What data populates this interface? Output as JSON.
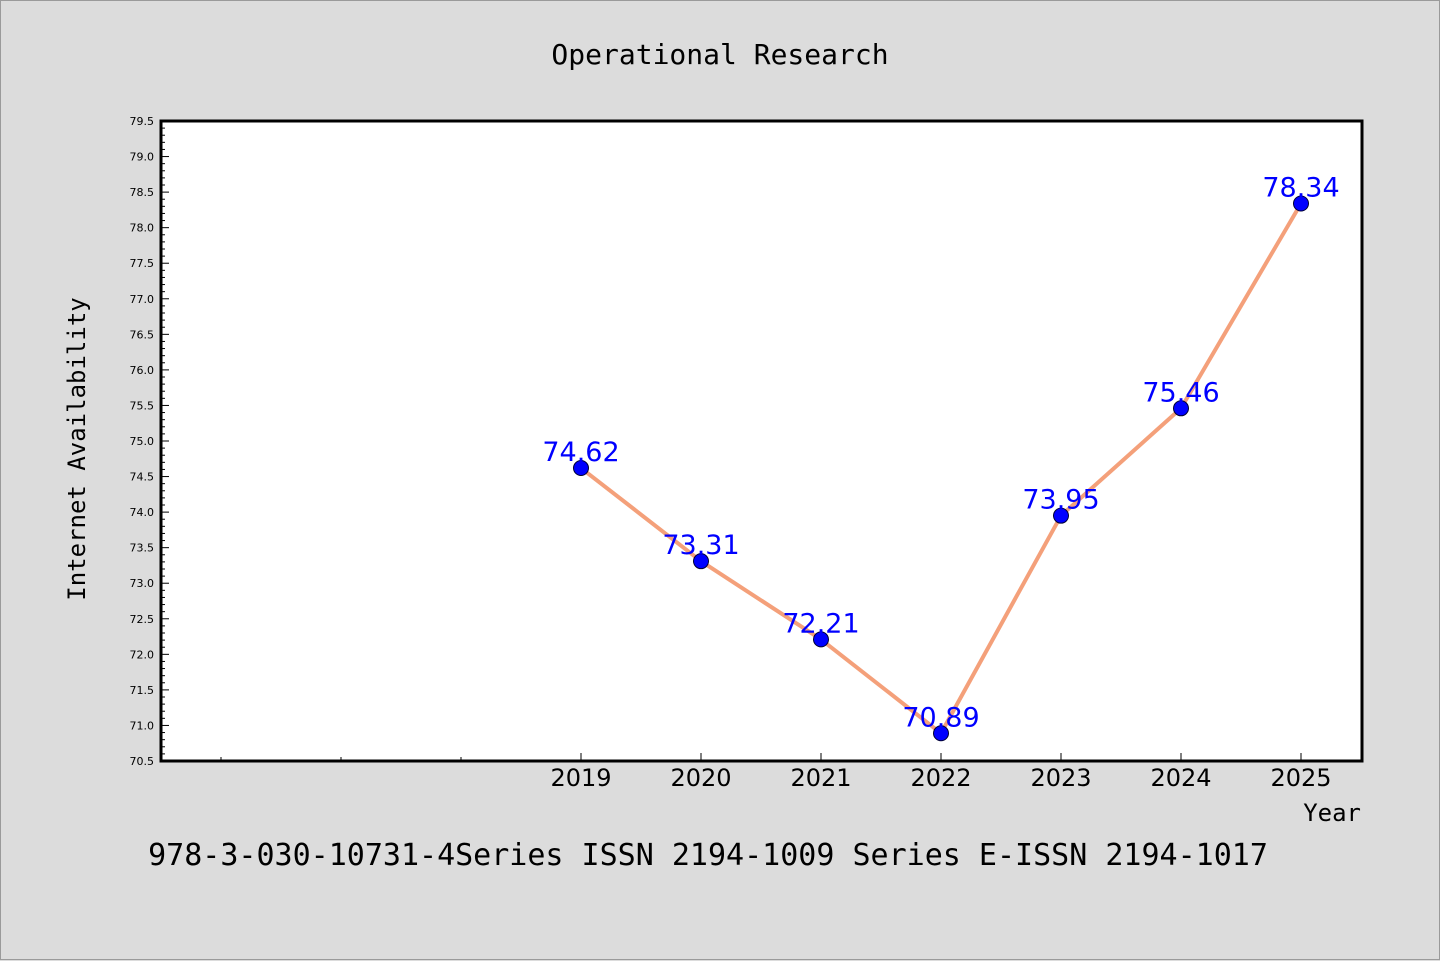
{
  "chart_data": {
    "type": "line",
    "title": "Operational Research",
    "subtitle": "978-3-030-10731-4Series ISSN 2194-1009 Series E-ISSN 2194-1017",
    "xlabel": "Year",
    "ylabel": "Internet Availability",
    "categories": [
      "2019",
      "2020",
      "2021",
      "2022",
      "2023",
      "2024",
      "2025"
    ],
    "values": [
      74.62,
      73.31,
      72.21,
      70.89,
      73.95,
      75.46,
      78.34
    ],
    "data_labels": [
      "74.62",
      "73.31",
      "72.21",
      "70.89",
      "73.95",
      "75.46",
      "78.34"
    ],
    "ylim": [
      70.5,
      79.5
    ],
    "yticks": [
      "70.5",
      "71.0",
      "71.5",
      "72.0",
      "72.5",
      "73.0",
      "73.5",
      "74.0",
      "74.5",
      "75.0",
      "75.5",
      "76.0",
      "76.5",
      "77.0",
      "77.5",
      "78.0",
      "78.5",
      "79.0",
      "79.5"
    ],
    "grid": false,
    "legend": "none",
    "colors": {
      "background": "#dcdcdc",
      "plot_background": "#ffffff",
      "line": "#f4a07a",
      "marker": "#0000ff",
      "data_label": "#0000ff",
      "text": "#000000"
    }
  }
}
